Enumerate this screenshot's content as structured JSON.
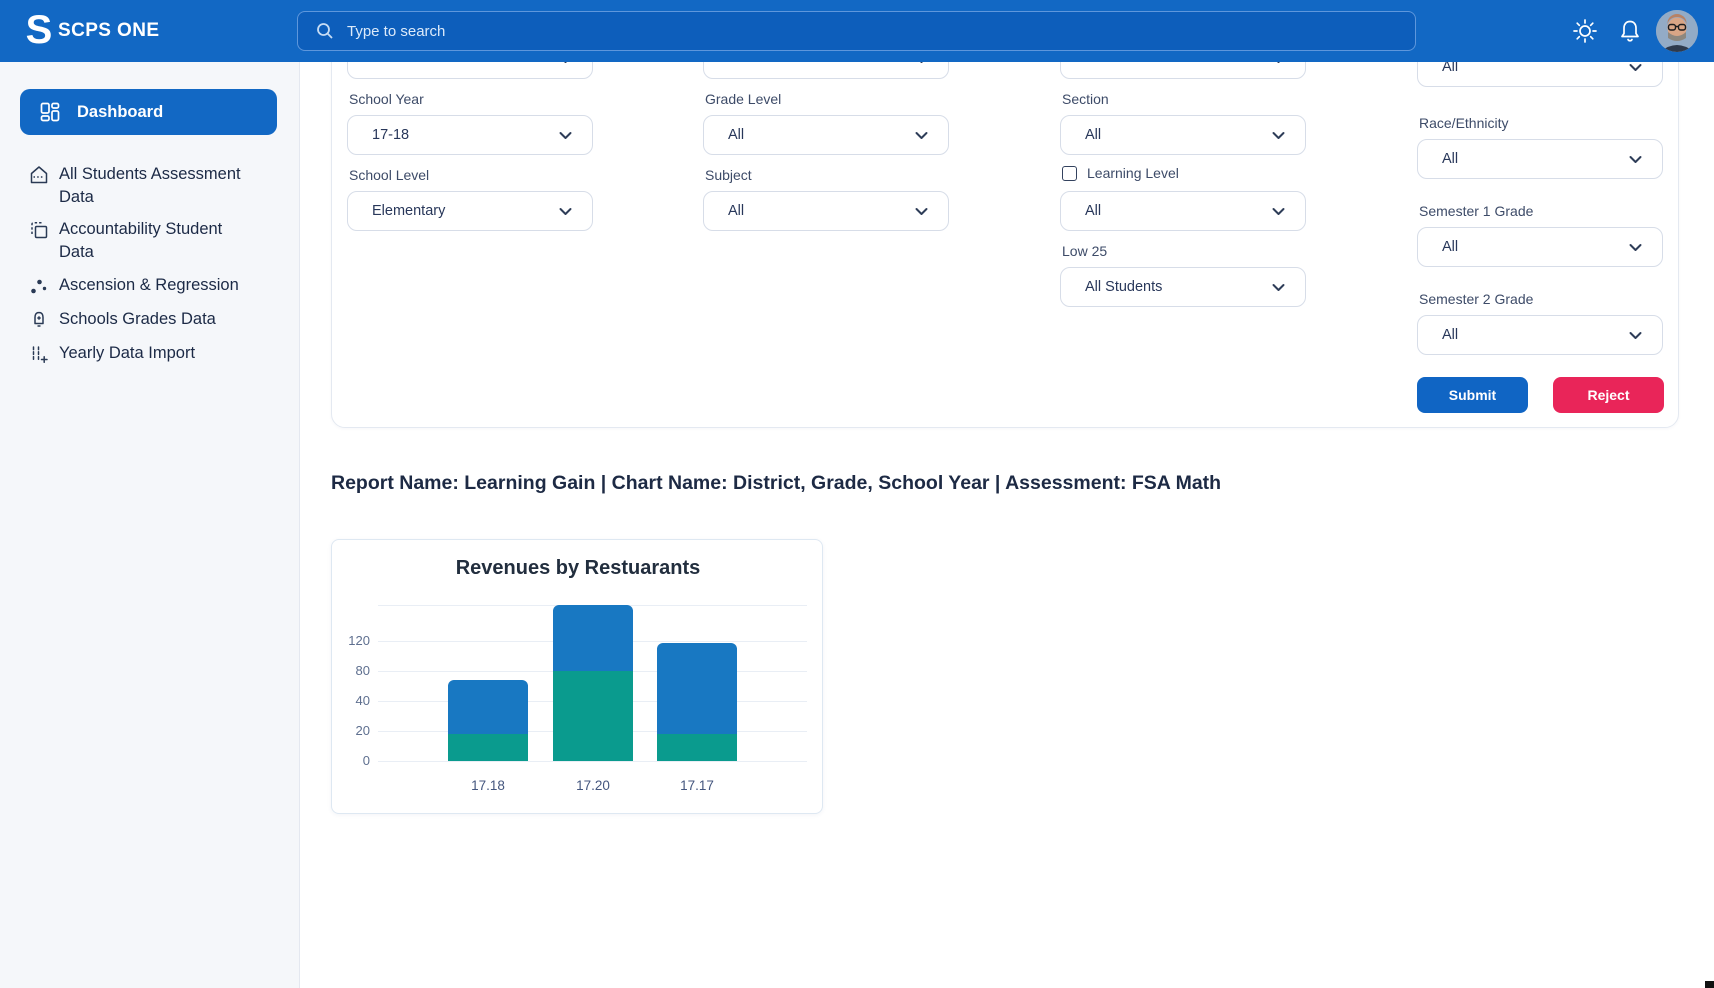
{
  "header": {
    "brand": "SCPS ONE",
    "logo_letter": "S",
    "search": {
      "placeholder": "Type to search",
      "icon": "search-icon"
    },
    "theme_icon": "sun-icon",
    "notifications_icon": "bell-icon",
    "avatar_alt": "user-avatar"
  },
  "sidebar": {
    "active": {
      "label": "Dashboard",
      "icon": "dashboard-grid-icon"
    },
    "items": [
      {
        "label": "All Students Assessment Data",
        "icon": "house-icon"
      },
      {
        "label": "Accountability Student Data",
        "icon": "copy-icon"
      },
      {
        "label": "Ascension & Regression",
        "icon": "scatter-dots-icon"
      },
      {
        "label": "Schools Grades Data",
        "icon": "bell-plus-icon"
      },
      {
        "label": "Yearly Data Import",
        "icon": "data-import-icon"
      }
    ]
  },
  "filters": {
    "columns": [
      {
        "fields": [
          {
            "type": "partial",
            "label": "",
            "value": ""
          },
          {
            "type": "select",
            "label": "School Year",
            "value": "17-18"
          },
          {
            "type": "select",
            "label": "School Level",
            "value": "Elementary"
          }
        ]
      },
      {
        "fields": [
          {
            "type": "partial",
            "label": "",
            "value": ""
          },
          {
            "type": "select",
            "label": "Grade Level",
            "value": "All"
          },
          {
            "type": "select",
            "label": "Subject",
            "value": "All"
          }
        ]
      },
      {
        "fields": [
          {
            "type": "partial",
            "label": "",
            "value": ""
          },
          {
            "type": "select",
            "label": "Section",
            "value": "All"
          },
          {
            "type": "select",
            "label": "Learning Level",
            "value": "All",
            "checkbox": true,
            "checked": false
          },
          {
            "type": "select",
            "label": "Low 25",
            "value": "All Students"
          }
        ]
      },
      {
        "fields": [
          {
            "type": "partial",
            "label": "",
            "value": "All"
          },
          {
            "type": "select",
            "label": "Race/Ethnicity",
            "value": "All"
          },
          {
            "type": "select",
            "label": "Semester 1 Grade",
            "value": "All"
          },
          {
            "type": "select",
            "label": "Semester 2 Grade",
            "value": "All"
          }
        ]
      }
    ],
    "submit_label": "Submit",
    "reject_label": "Reject"
  },
  "report_line": "Report Name: Learning Gain | Chart Name: District, Grade, School Year | Assessment: FSA Math",
  "chart_data": {
    "type": "bar",
    "stacked": true,
    "title": "Revenues by Restuarants",
    "categories": [
      "17.18",
      "17.20",
      "17.17"
    ],
    "series": [
      {
        "name": "series-1-teal",
        "color": "#0A9B8E",
        "values": [
          18,
          80,
          18
        ]
      },
      {
        "name": "series-2-blue",
        "color": "#1878C2",
        "values": [
          50,
          80,
          100
        ]
      }
    ],
    "stack_totals": [
      68,
      160,
      118
    ],
    "y_tick_labels": [
      0,
      20,
      40,
      80,
      120
    ],
    "y_axis_top_value": 160,
    "grid": true,
    "legend": "none",
    "xlabel": "",
    "ylabel": ""
  },
  "colors": {
    "brand_blue": "#1268C4",
    "submit_blue": "#1065C4",
    "reject_red": "#E92559",
    "chart_teal": "#0A9B8E",
    "chart_blue": "#1878C2",
    "sidebar_bg": "#F5F7FA"
  }
}
